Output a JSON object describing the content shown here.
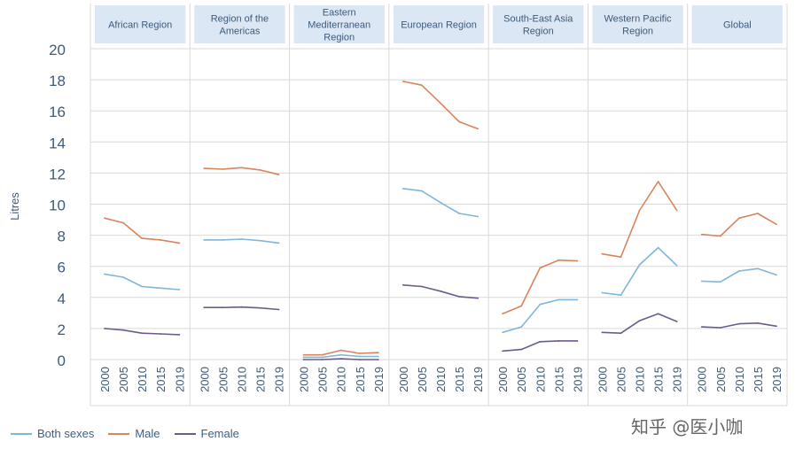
{
  "chart_data": {
    "type": "line",
    "ylabel": "Litres",
    "ylim": [
      0,
      20
    ],
    "yticks": [
      "0",
      "2",
      "4",
      "6",
      "8",
      "10",
      "12",
      "14",
      "16",
      "18",
      "20"
    ],
    "x": [
      "2000",
      "2005",
      "2010",
      "2015",
      "2019"
    ],
    "panels": [
      {
        "title": [
          "African Region"
        ],
        "series": {
          "both": [
            5.5,
            5.3,
            4.7,
            4.6,
            4.5
          ],
          "male": [
            9.1,
            8.8,
            7.8,
            7.7,
            7.5
          ],
          "female": [
            2.0,
            1.9,
            1.7,
            1.65,
            1.6
          ]
        }
      },
      {
        "title": [
          "Region of the",
          "Americas"
        ],
        "series": {
          "both": [
            7.7,
            7.7,
            7.75,
            7.65,
            7.5
          ],
          "male": [
            12.3,
            12.25,
            12.35,
            12.2,
            11.9
          ],
          "female": [
            3.35,
            3.35,
            3.38,
            3.32,
            3.22
          ]
        }
      },
      {
        "title": [
          "Eastern",
          "Mediterranean",
          "Region"
        ],
        "series": {
          "both": [
            0.15,
            0.15,
            0.3,
            0.2,
            0.2
          ],
          "male": [
            0.3,
            0.3,
            0.6,
            0.4,
            0.45
          ],
          "female": [
            0.0,
            0.0,
            0.05,
            0.0,
            0.0
          ]
        }
      },
      {
        "title": [
          "European Region"
        ],
        "series": {
          "both": [
            11.0,
            10.85,
            10.1,
            9.4,
            9.2
          ],
          "male": [
            17.9,
            17.65,
            16.5,
            15.3,
            14.85
          ],
          "female": [
            4.8,
            4.7,
            4.4,
            4.05,
            3.95
          ]
        }
      },
      {
        "title": [
          "South-East Asia",
          "Region"
        ],
        "series": {
          "both": [
            1.75,
            2.1,
            3.55,
            3.85,
            3.85
          ],
          "male": [
            2.95,
            3.45,
            5.9,
            6.4,
            6.35
          ],
          "female": [
            0.55,
            0.65,
            1.15,
            1.2,
            1.2
          ]
        }
      },
      {
        "title": [
          "Western Pacific",
          "Region"
        ],
        "series": {
          "both": [
            4.3,
            4.15,
            6.1,
            7.2,
            6.05
          ],
          "male": [
            6.8,
            6.6,
            9.6,
            11.45,
            9.6
          ],
          "female": [
            1.75,
            1.7,
            2.5,
            2.95,
            2.45
          ]
        }
      },
      {
        "title": [
          "Global"
        ],
        "series": {
          "both": [
            5.05,
            5.0,
            5.7,
            5.85,
            5.45
          ],
          "male": [
            8.05,
            7.95,
            9.1,
            9.4,
            8.7
          ],
          "female": [
            2.1,
            2.05,
            2.3,
            2.35,
            2.15
          ]
        }
      }
    ],
    "legend": [
      {
        "key": "both",
        "label": "Both sexes",
        "color": "#7eb6dd"
      },
      {
        "key": "male",
        "label": "Male",
        "color": "#d9845a"
      },
      {
        "key": "female",
        "label": "Female",
        "color": "#6d5b8c"
      }
    ],
    "header_bg": "#dbe7f4",
    "grid_color": "#d9d9d9"
  },
  "watermark": "知乎 @医小咖"
}
